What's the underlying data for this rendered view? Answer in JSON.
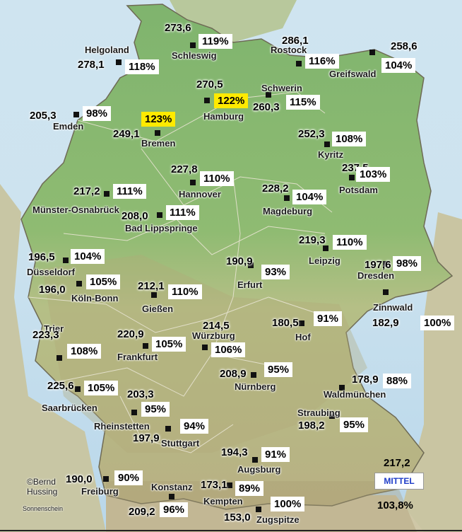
{
  "legend": {
    "title": "MITTEL",
    "hours": "217,2",
    "percent": "103,8%"
  },
  "credit": {
    "author": "©Bernd\nHussing",
    "product": "Sonnenschein"
  },
  "stations": [
    {
      "id": "schleswig",
      "name": "Schleswig",
      "value": "273,6",
      "percent": "119%",
      "highlight": false
    },
    {
      "id": "rostock",
      "name": "Rostock",
      "value": "286,1",
      "percent": "116%",
      "highlight": false
    },
    {
      "id": "greifswald",
      "name": "Greifswald",
      "value": "258,6",
      "percent": "104%",
      "highlight": false
    },
    {
      "id": "helgoland",
      "name": "Helgoland",
      "value": "278,1",
      "percent": "118%",
      "highlight": false
    },
    {
      "id": "hamburg",
      "name": "Hamburg",
      "value": "270,5",
      "percent": "122%",
      "highlight": true
    },
    {
      "id": "schwerin",
      "name": "Schwerin",
      "value": "260,3",
      "percent": "115%",
      "highlight": false
    },
    {
      "id": "emden",
      "name": "Emden",
      "value": "205,3",
      "percent": "98%",
      "highlight": false
    },
    {
      "id": "bremen",
      "name": "Bremen",
      "value": "249,1",
      "percent": "123%",
      "highlight": true
    },
    {
      "id": "kyritz",
      "name": "Kyritz",
      "value": "252,3",
      "percent": "108%",
      "highlight": false
    },
    {
      "id": "potsdam",
      "name": "Potsdam",
      "value": "237,5",
      "percent": "103%",
      "highlight": false
    },
    {
      "id": "hannover",
      "name": "Hannover",
      "value": "227,8",
      "percent": "110%",
      "highlight": false
    },
    {
      "id": "muenster",
      "name": "Münster-Osnabrück",
      "value": "217,2",
      "percent": "111%",
      "highlight": false
    },
    {
      "id": "magdeburg",
      "name": "Magdeburg",
      "value": "228,2",
      "percent": "104%",
      "highlight": false
    },
    {
      "id": "badlippspringe",
      "name": "Bad Lippspringe",
      "value": "208,0",
      "percent": "111%",
      "highlight": false
    },
    {
      "id": "leipzig",
      "name": "Leipzig",
      "value": "219,3",
      "percent": "110%",
      "highlight": false
    },
    {
      "id": "duesseldorf",
      "name": "Düsseldorf",
      "value": "196,5",
      "percent": "104%",
      "highlight": false
    },
    {
      "id": "erfurt",
      "name": "Erfurt",
      "value": "190,9",
      "percent": "93%",
      "highlight": false
    },
    {
      "id": "dresden",
      "name": "Dresden",
      "value": "197,6",
      "percent": "98%",
      "highlight": false
    },
    {
      "id": "koelnbonn",
      "name": "Köln-Bonn",
      "value": "196,0",
      "percent": "105%",
      "highlight": false
    },
    {
      "id": "giessen",
      "name": "Gießen",
      "value": "212,1",
      "percent": "110%",
      "highlight": false
    },
    {
      "id": "zinnwald",
      "name": "Zinnwald",
      "value": "182,9",
      "percent": "100%",
      "highlight": false
    },
    {
      "id": "hof",
      "name": "Hof",
      "value": "180,5",
      "percent": "91%",
      "highlight": false
    },
    {
      "id": "trier",
      "name": "Trier",
      "value": "223,3",
      "percent": "108%",
      "highlight": false
    },
    {
      "id": "frankfurt",
      "name": "Frankfurt",
      "value": "220,9",
      "percent": "105%",
      "highlight": false
    },
    {
      "id": "wuerzburg",
      "name": "Würzburg",
      "value": "214,5",
      "percent": "106%",
      "highlight": false
    },
    {
      "id": "nuernberg",
      "name": "Nürnberg",
      "value": "208,9",
      "percent": "95%",
      "highlight": false
    },
    {
      "id": "waldmuenchen",
      "name": "Waldmünchen",
      "value": "178,9",
      "percent": "88%",
      "highlight": false
    },
    {
      "id": "saarbruecken",
      "name": "Saarbrücken",
      "value": "225,6",
      "percent": "105%",
      "highlight": false
    },
    {
      "id": "rheinstetten",
      "name": "Rheinstetten",
      "value": "203,3",
      "percent": "95%",
      "highlight": false
    },
    {
      "id": "stuttgart",
      "name": "Stuttgart",
      "value": "197,9",
      "percent": "94%",
      "highlight": false
    },
    {
      "id": "straubing",
      "name": "Straubing",
      "value": "198,2",
      "percent": "95%",
      "highlight": false
    },
    {
      "id": "augsburg",
      "name": "Augsburg",
      "value": "194,3",
      "percent": "91%",
      "highlight": false
    },
    {
      "id": "freiburg",
      "name": "Freiburg",
      "value": "190,0",
      "percent": "90%",
      "highlight": false
    },
    {
      "id": "konstanz",
      "name": "Konstanz",
      "value": "209,2",
      "percent": "96%",
      "highlight": false
    },
    {
      "id": "kempten",
      "name": "Kempten",
      "value": "173,1",
      "percent": "89%",
      "highlight": false
    },
    {
      "id": "zugspitze",
      "name": "Zugspitze",
      "value": "153,0",
      "percent": "100%",
      "highlight": false
    }
  ]
}
